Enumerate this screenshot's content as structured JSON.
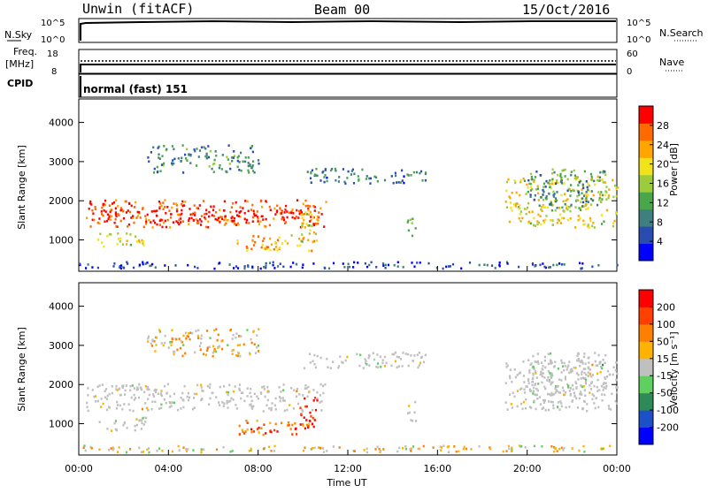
{
  "header": {
    "station": "Unwin (fitACF)",
    "beam": "Beam 00",
    "date": "15/Oct/2016"
  },
  "status_panels": {
    "nsky_label": "N.Sky",
    "nsky_ticks": [
      "10^5",
      "10^0"
    ],
    "nsearch_label": "N.Search",
    "nsearch_ticks": [
      "10^5",
      "10^0"
    ],
    "freq_label_1": "Freq.",
    "freq_label_2": "[MHz]",
    "freq_ticks": [
      "18",
      "8"
    ],
    "nave_label": "Nave",
    "nave_ticks": [
      "60",
      "0"
    ],
    "cpid_label": "CPID",
    "cpid_value": "normal (fast) 151"
  },
  "chart_data": [
    {
      "type": "heatmap",
      "name": "power",
      "ylabel": "Slant Range [km]",
      "xlabel": "Time UT",
      "ylim": [
        200,
        4600
      ],
      "yticks": [
        "1000",
        "2000",
        "3000",
        "4000"
      ],
      "colorbar_label": "Power [dB]",
      "colorbar_ticks": [
        "4",
        "8",
        "12",
        "16",
        "20",
        "24",
        "28"
      ],
      "colorscale": [
        "#0000ff",
        "#2a4cb0",
        "#3f7f7f",
        "#4aa64a",
        "#9ccc3c",
        "#f2e21a",
        "#ffa500",
        "#ff6a00",
        "#ff0000"
      ],
      "regions": [
        {
          "t0": 0.3,
          "t1": 11.0,
          "r0": 1300,
          "r1": 2000,
          "level": 0.85
        },
        {
          "t0": 0.5,
          "t1": 10.5,
          "r0": 1450,
          "r1": 1750,
          "level": 0.98
        },
        {
          "t0": 0.8,
          "t1": 3.0,
          "r0": 800,
          "r1": 1150,
          "level": 0.55
        },
        {
          "t0": 7.0,
          "t1": 10.5,
          "r0": 700,
          "r1": 1100,
          "level": 0.7
        },
        {
          "t0": 9.8,
          "t1": 10.6,
          "r0": 900,
          "r1": 1700,
          "level": 0.6
        },
        {
          "t0": 3.0,
          "t1": 8.0,
          "r0": 2700,
          "r1": 3400,
          "level": 0.3
        },
        {
          "t0": 10.0,
          "t1": 15.5,
          "r0": 2400,
          "r1": 2800,
          "level": 0.25
        },
        {
          "t0": 14.6,
          "t1": 15.0,
          "r0": 1000,
          "r1": 1600,
          "level": 0.4
        },
        {
          "t0": 19.0,
          "t1": 24.0,
          "r0": 1300,
          "r1": 2600,
          "level": 0.6
        },
        {
          "t0": 20.0,
          "t1": 23.5,
          "r0": 1700,
          "r1": 2800,
          "level": 0.35
        },
        {
          "t0": 0.0,
          "t1": 24.0,
          "r0": 250,
          "r1": 420,
          "level": 0.15
        }
      ]
    },
    {
      "type": "heatmap",
      "name": "velocity",
      "ylabel": "Slant Range [km]",
      "xlabel": "Time UT",
      "ylim": [
        200,
        4600
      ],
      "yticks": [
        "1000",
        "2000",
        "3000",
        "4000"
      ],
      "colorbar_label": "Velocity [m s⁻¹]",
      "colorbar_ticks": [
        "200",
        "100",
        "50",
        "15",
        "-15",
        "-50",
        "-100",
        "-200"
      ],
      "colorscale": [
        "#0000ff",
        "#1d4fc8",
        "#2e8b57",
        "#5fd05f",
        "#c0c0c0",
        "#ffb300",
        "#ff8000",
        "#ff4000",
        "#ff0000"
      ],
      "regions": [
        {
          "t0": 0.3,
          "t1": 11.0,
          "r0": 1300,
          "r1": 2000,
          "level": 0.5
        },
        {
          "t0": 0.8,
          "t1": 3.0,
          "r0": 800,
          "r1": 1150,
          "level": 0.5
        },
        {
          "t0": 7.0,
          "t1": 10.5,
          "r0": 700,
          "r1": 1100,
          "level": 0.78
        },
        {
          "t0": 9.8,
          "t1": 10.6,
          "r0": 900,
          "r1": 1700,
          "level": 0.95
        },
        {
          "t0": 3.0,
          "t1": 8.0,
          "r0": 2700,
          "r1": 3400,
          "level": 0.6
        },
        {
          "t0": 10.0,
          "t1": 15.5,
          "r0": 2400,
          "r1": 2800,
          "level": 0.5
        },
        {
          "t0": 14.6,
          "t1": 15.0,
          "r0": 1000,
          "r1": 1600,
          "level": 0.5
        },
        {
          "t0": 19.0,
          "t1": 24.0,
          "r0": 1300,
          "r1": 2600,
          "level": 0.5
        },
        {
          "t0": 20.0,
          "t1": 23.5,
          "r0": 1700,
          "r1": 2800,
          "level": 0.5
        },
        {
          "t0": 0.0,
          "t1": 24.0,
          "r0": 250,
          "r1": 420,
          "level": 0.55
        }
      ]
    }
  ],
  "time_axis": {
    "xlim": [
      0,
      24
    ],
    "ticks": [
      "00:00",
      "04:00",
      "08:00",
      "12:00",
      "16:00",
      "20:00",
      "00:00"
    ],
    "label": "Time UT"
  }
}
